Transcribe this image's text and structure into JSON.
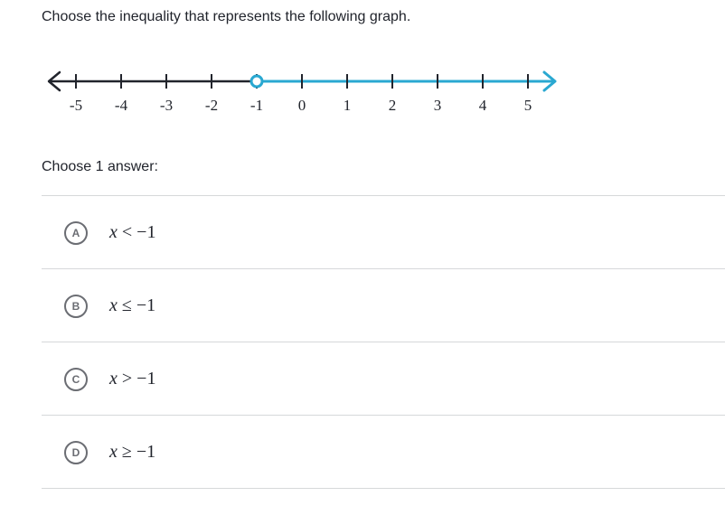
{
  "question": {
    "prompt": "Choose the inequality that represents the following graph."
  },
  "number_line": {
    "ticks": [
      "-5",
      "-4",
      "-3",
      "-2",
      "-1",
      "0",
      "1",
      "2",
      "3",
      "4",
      "5"
    ],
    "tick_values": [
      -5,
      -4,
      -3,
      -2,
      -1,
      0,
      1,
      2,
      3,
      4,
      5
    ],
    "point_value": -1,
    "point_type": "open",
    "shaded_direction": "right",
    "line_color": "#21242c",
    "shade_color": "#29a8d1"
  },
  "answers": {
    "label": "Choose 1 answer:",
    "choices": [
      {
        "letter": "A",
        "variable": "x",
        "operator": "<",
        "value": "−1"
      },
      {
        "letter": "B",
        "variable": "x",
        "operator": "≤",
        "value": "−1"
      },
      {
        "letter": "C",
        "variable": "x",
        "operator": ">",
        "value": "−1"
      },
      {
        "letter": "D",
        "variable": "x",
        "operator": "≥",
        "value": "−1"
      }
    ]
  }
}
